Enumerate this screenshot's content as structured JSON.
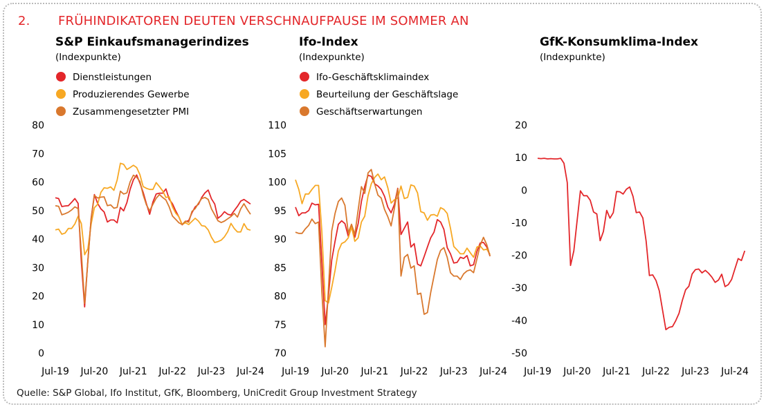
{
  "header": {
    "number": "2.",
    "title": "FRÜHINDIKATOREN DEUTEN VERSCHNAUFPAUSE IM SOMMER AN"
  },
  "source": "Quelle: S&P Global, Ifo Institut, GfK, Bloomberg, UniCredit Group Investment Strategy",
  "colors": {
    "red": "#e3262a",
    "yellow": "#f7a823",
    "orange": "#d9782d"
  },
  "chart_data": [
    {
      "type": "line",
      "title": "S&P Einkaufsmanagerindizes",
      "subtitle": "(Indexpunkte)",
      "x_start": "2019-07",
      "xticks": [
        "Jul-19",
        "Jul-20",
        "Jul-21",
        "Jul-22",
        "Jul-23",
        "Jul-24"
      ],
      "yticks": [
        "80",
        "70",
        "60",
        "50",
        "40",
        "30",
        "20",
        "10",
        "0"
      ],
      "ylim": [
        0,
        80
      ],
      "series": [
        {
          "name": "Dienstleistungen",
          "color": "#e3262a",
          "values": [
            54.5,
            54.2,
            51.4,
            51.6,
            51.7,
            52.9,
            54.2,
            52.5,
            31.7,
            16.2,
            32.6,
            47.3,
            55.6,
            52.5,
            50.6,
            49.5,
            46.0,
            46.7,
            46.7,
            45.7,
            51.1,
            49.9,
            52.8,
            57.5,
            60.8,
            62.5,
            59.6,
            56.4,
            52.4,
            48.7,
            53.0,
            55.8,
            56.1,
            56.1,
            57.6,
            54.0,
            52.4,
            49.9,
            47.7,
            45.0,
            46.1,
            46.5,
            49.2,
            51.3,
            52.2,
            54.6,
            56.2,
            57.2,
            54.1,
            52.3,
            47.3,
            48.2,
            49.6,
            48.7,
            48.4,
            50.0,
            51.5,
            53.3,
            53.9,
            53.1,
            52.3
          ]
        },
        {
          "name": "Produzierendes Gewerbe",
          "color": "#f7a823",
          "values": [
            43.2,
            43.5,
            41.7,
            42.1,
            43.7,
            43.7,
            45.3,
            48.0,
            45.4,
            34.5,
            36.6,
            45.2,
            51.0,
            52.2,
            56.4,
            58.0,
            57.8,
            58.3,
            57.1,
            60.7,
            66.6,
            66.2,
            64.4,
            65.1,
            65.9,
            65.1,
            62.6,
            58.4,
            57.8,
            57.4,
            57.4,
            59.8,
            58.4,
            56.9,
            54.6,
            54.8,
            51.3,
            49.1,
            47.8,
            45.1,
            45.7,
            45.1,
            46.2,
            47.3,
            46.3,
            44.7,
            44.5,
            43.2,
            40.6,
            38.8,
            39.1,
            39.6,
            40.8,
            42.6,
            45.5,
            43.7,
            42.5,
            42.5,
            45.4,
            43.5,
            43.1
          ]
        },
        {
          "name": "Zusammengesetzter PMI",
          "color": "#d9782d",
          "values": [
            51.7,
            51.5,
            48.5,
            48.9,
            49.4,
            50.2,
            51.3,
            50.7,
            35.0,
            17.4,
            32.3,
            47.0,
            55.3,
            54.4,
            54.7,
            54.8,
            51.7,
            52.0,
            50.8,
            51.1,
            56.8,
            55.8,
            56.2,
            60.1,
            62.4,
            61.7,
            60.2,
            55.5,
            52.0,
            49.9,
            52.2,
            54.3,
            55.6,
            54.6,
            53.7,
            51.3,
            48.1,
            46.9,
            45.7,
            45.1,
            46.3,
            45.9,
            49.7,
            50.7,
            52.6,
            54.2,
            54.6,
            53.9,
            50.6,
            48.5,
            46.4,
            45.8,
            46.3,
            47.1,
            47.9,
            49.0,
            47.7,
            50.6,
            52.4,
            50.4,
            48.7
          ]
        }
      ]
    },
    {
      "type": "line",
      "title": "Ifo-Index",
      "subtitle": "(Indexpunkte)",
      "x_start": "2019-07",
      "xticks": [
        "Jul-19",
        "Jul-20",
        "Jul-21",
        "Jul-22",
        "Jul-23",
        "Jul-24"
      ],
      "yticks": [
        "110",
        "105",
        "100",
        "95",
        "90",
        "85",
        "80",
        "75",
        "70"
      ],
      "ylim": [
        70,
        110
      ],
      "series": [
        {
          "name": "Ifo-Geschäftsklimaindex",
          "color": "#e3262a",
          "values": [
            95.6,
            94.1,
            94.6,
            94.6,
            95.0,
            96.3,
            96.0,
            96.1,
            86.0,
            75.0,
            80.1,
            86.3,
            89.6,
            92.6,
            93.2,
            92.7,
            90.5,
            92.2,
            90.3,
            92.7,
            96.6,
            99.2,
            101.2,
            101.0,
            99.7,
            99.3,
            98.7,
            97.5,
            95.6,
            94.6,
            96.1,
            98.9,
            90.8,
            91.9,
            93.0,
            88.6,
            89.2,
            85.6,
            85.3,
            86.9,
            88.6,
            90.2,
            91.2,
            93.4,
            93.0,
            91.7,
            88.5,
            87.4,
            85.8,
            85.9,
            86.8,
            86.6,
            87.1,
            85.3,
            85.5,
            87.8,
            89.3,
            89.4,
            88.6,
            87.0
          ]
        },
        {
          "name": "Beurteilung der Geschäftslage",
          "color": "#f7a823",
          "values": [
            100.4,
            98.7,
            96.2,
            97.9,
            97.9,
            98.7,
            99.4,
            99.4,
            91.4,
            79.2,
            78.8,
            81.5,
            84.5,
            87.9,
            89.2,
            89.5,
            90.2,
            92.1,
            89.6,
            90.2,
            93.0,
            94.0,
            97.6,
            99.7,
            100.8,
            101.4,
            100.4,
            100.9,
            99.0,
            96.3,
            96.9,
            97.2,
            99.3,
            97.1,
            97.3,
            99.5,
            99.3,
            98.1,
            94.8,
            94.6,
            93.3,
            94.2,
            94.3,
            94.0,
            95.5,
            95.2,
            94.5,
            91.9,
            88.7,
            88.1,
            87.4,
            87.4,
            88.4,
            87.6,
            86.8,
            88.6,
            88.8,
            88.1,
            88.2,
            87.3
          ]
        },
        {
          "name": "Geschäftserwartungen",
          "color": "#d9782d",
          "values": [
            91.2,
            91.0,
            91.0,
            91.8,
            92.4,
            93.5,
            92.7,
            93.0,
            80.8,
            71.1,
            81.4,
            91.4,
            94.5,
            96.6,
            97.2,
            95.9,
            91.1,
            92.6,
            90.8,
            95.1,
            99.2,
            98.0,
            101.6,
            102.2,
            99.7,
            97.7,
            97.2,
            95.2,
            93.9,
            92.3,
            95.4,
            98.8,
            83.5,
            86.8,
            87.3,
            84.9,
            85.3,
            80.3,
            80.5,
            76.8,
            77.1,
            80.6,
            83.5,
            86.4,
            88.0,
            88.5,
            86.8,
            84.1,
            83.5,
            83.5,
            82.9,
            83.9,
            84.4,
            84.6,
            84.1,
            86.5,
            88.9,
            90.3,
            89.0,
            87.0
          ]
        }
      ]
    },
    {
      "type": "line",
      "title": "GfK-Konsumklima-Index",
      "subtitle": "(Indexpunkte)",
      "x_start": "2019-07",
      "xticks": [
        "Jul-19",
        "Jul-20",
        "Jul-21",
        "Jul-22",
        "Jul-23",
        "Jul-24"
      ],
      "yticks": [
        "20",
        "10",
        "0",
        "-10",
        "-20",
        "-30",
        "-40",
        "-50"
      ],
      "ylim": [
        -50,
        20
      ],
      "series": [
        {
          "name": "",
          "color": "#e3262a",
          "values": [
            9.8,
            9.7,
            9.8,
            9.6,
            9.7,
            9.6,
            9.6,
            9.8,
            8.3,
            2.3,
            -23.1,
            -18.6,
            -9.4,
            -0.2,
            -1.7,
            -1.7,
            -3.1,
            -6.7,
            -7.3,
            -15.5,
            -12.7,
            -6.2,
            -8.6,
            -6.9,
            -0.4,
            -0.5,
            -1.2,
            0.3,
            1.0,
            -1.9,
            -6.9,
            -6.7,
            -8.5,
            -15.7,
            -26.2,
            -26.0,
            -27.7,
            -30.9,
            -36.8,
            -42.8,
            -42.1,
            -41.9,
            -40.1,
            -37.8,
            -33.9,
            -30.6,
            -29.5,
            -25.7,
            -24.4,
            -24.2,
            -25.4,
            -24.6,
            -25.5,
            -26.7,
            -28.3,
            -27.6,
            -25.8,
            -29.6,
            -29.0,
            -27.4,
            -24.2,
            -21.0,
            -21.6,
            -18.6
          ]
        }
      ]
    }
  ]
}
